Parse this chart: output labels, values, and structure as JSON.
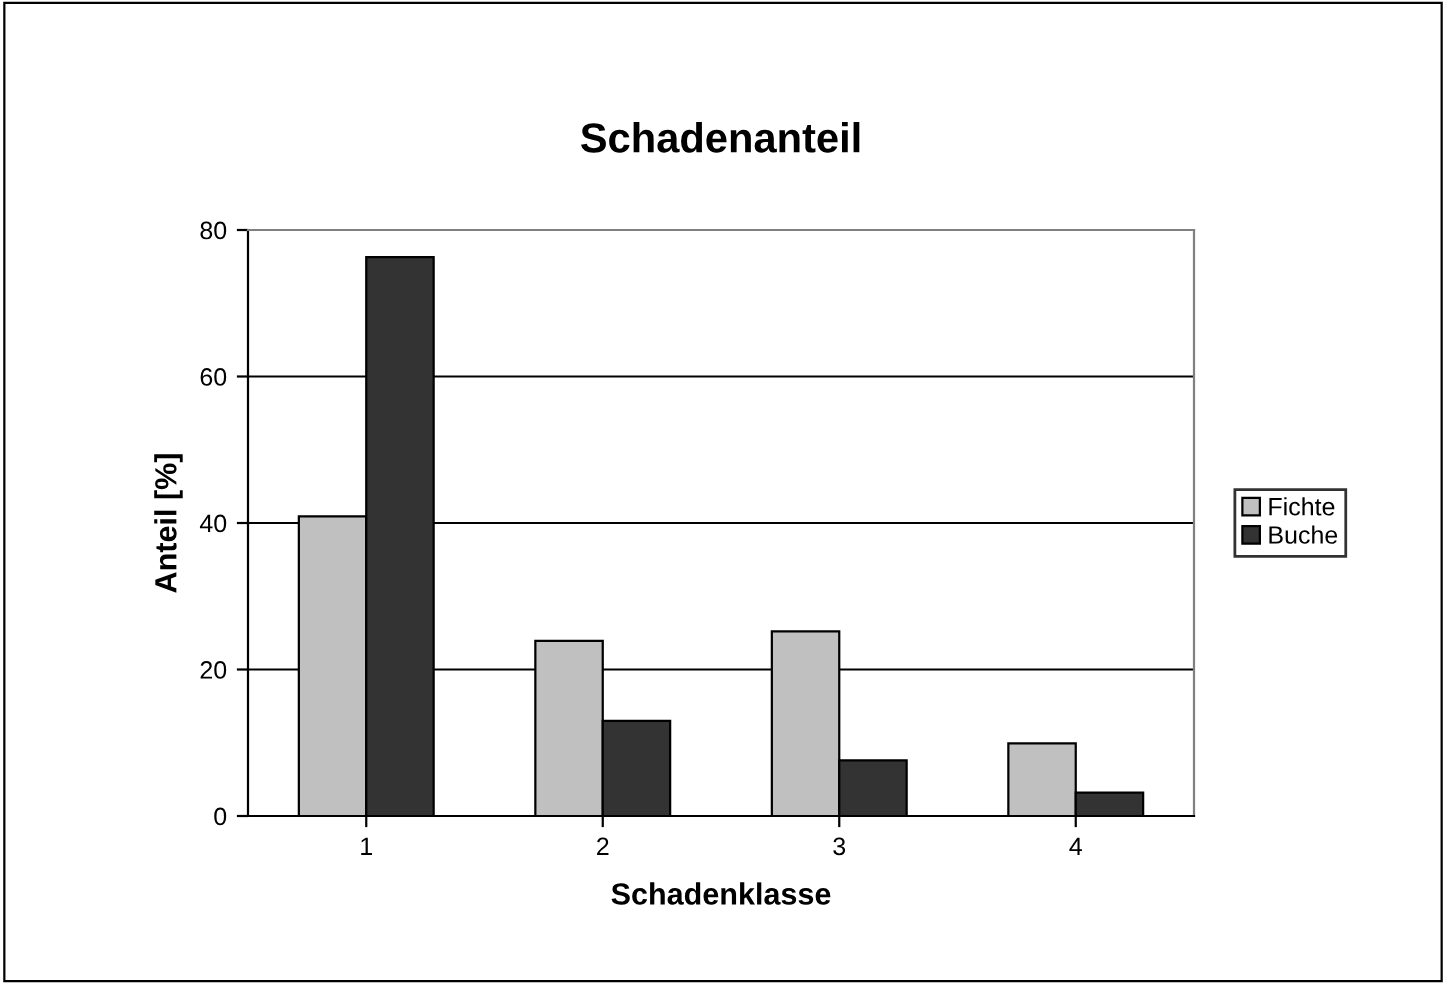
{
  "chart_data": {
    "type": "bar",
    "title": "Schadenanteil",
    "xlabel": "Schadenklasse",
    "ylabel": "Anteil [%]",
    "categories": [
      "1",
      "2",
      "3",
      "4"
    ],
    "series": [
      {
        "name": "Fichte",
        "color": "#c0c0c0",
        "values": [
          40.9,
          23.9,
          25.2,
          9.9
        ]
      },
      {
        "name": "Buche",
        "color": "#333333",
        "values": [
          76.3,
          13.0,
          7.6,
          3.2
        ]
      }
    ],
    "ylim": [
      0,
      80
    ],
    "yticks": [
      0,
      20,
      40,
      60,
      80
    ],
    "grid": "y",
    "legend": "right"
  }
}
